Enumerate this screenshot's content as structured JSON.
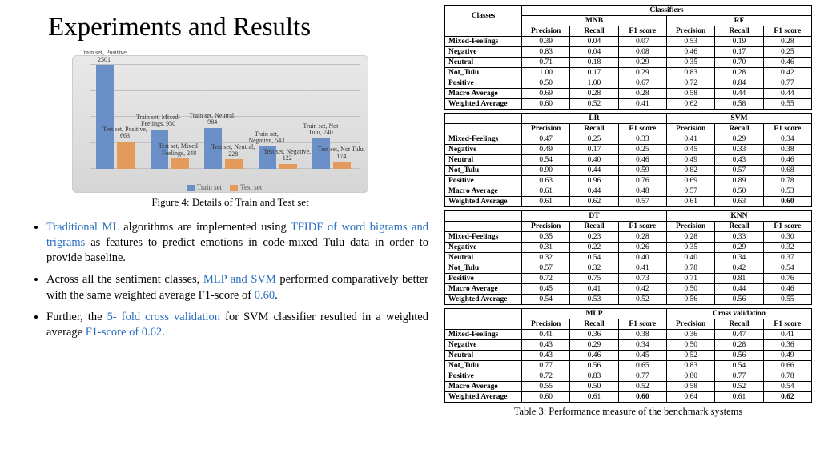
{
  "title": "Experiments and Results",
  "chart": {
    "type": "bar",
    "categories": [
      "Positive",
      "Mixed-Feelings",
      "Neutral",
      "Negative",
      "Not Tulu"
    ],
    "series": [
      {
        "name": "Train set",
        "color": "#6b8fc7",
        "values": [
          2501,
          950,
          984,
          543,
          740
        ]
      },
      {
        "name": "Test set",
        "color": "#e39a5b",
        "values": [
          663,
          248,
          228,
          122,
          174
        ]
      }
    ],
    "ymax": 2501,
    "grid_color": "#c0c0c0",
    "bg_gradient": [
      "#e9e9e9",
      "#d6d6d6"
    ],
    "bar_labels": [
      "Train set, Positive, 2501",
      "Test set, Positive, 663",
      "Train set, Mixed-Feelings, 950",
      "Test set, Mixed-Feelings, 248",
      "Train set, Neutral, 984",
      "Test set, Neutral, 228",
      "Train set, Negative, 543",
      "Test set, Negative, 122",
      "Train set, Not Tulu, 740",
      "Test set, Not Tulu, 174"
    ]
  },
  "figure_caption": "Figure 4: Details of Train and Test set",
  "bullets": [
    {
      "parts": [
        {
          "t": "Traditional ML",
          "hl": true
        },
        {
          "t": " algorithms  are implemented using "
        },
        {
          "t": "TFIDF of word bigrams and trigrams",
          "hl": true
        },
        {
          "t": " as features to predict emotions in code-mixed Tulu data in order to provide baseline."
        }
      ]
    },
    {
      "parts": [
        {
          "t": "Across all the sentiment classes, "
        },
        {
          "t": "MLP and SVM",
          "hl": true
        },
        {
          "t": " performed comparatively better with the same weighted average F1-score of "
        },
        {
          "t": "0.60",
          "hl": true
        },
        {
          "t": "."
        }
      ]
    },
    {
      "parts": [
        {
          "t": "Further, the "
        },
        {
          "t": "5- fold cross validation",
          "hl": true
        },
        {
          "t": " for SVM classifier resulted in a weighted average "
        },
        {
          "t": "F1-score of 0.62",
          "hl": true
        },
        {
          "t": "."
        }
      ]
    }
  ],
  "tables": {
    "header_row0_col0": "Classes",
    "header_row0_col1": "Classifiers",
    "metrics": [
      "Precision",
      "Recall",
      "F1 score"
    ],
    "class_labels": [
      "Mixed-Feelings",
      "Negative",
      "Neutral",
      "Not_Tulu",
      "Positive",
      "Macro Average",
      "Weighted Average"
    ],
    "blocks": [
      {
        "left": {
          "name": "MNB",
          "rows": [
            [
              0.39,
              0.04,
              0.07
            ],
            [
              0.83,
              0.04,
              0.08
            ],
            [
              0.71,
              0.18,
              0.29
            ],
            [
              1.0,
              0.17,
              0.29
            ],
            [
              0.5,
              1.0,
              0.67
            ],
            [
              0.69,
              0.28,
              0.28
            ],
            [
              0.6,
              0.52,
              0.41
            ]
          ]
        },
        "right": {
          "name": "RF",
          "rows": [
            [
              0.53,
              0.19,
              0.28
            ],
            [
              0.46,
              0.17,
              0.25
            ],
            [
              0.35,
              0.7,
              0.46
            ],
            [
              0.83,
              0.28,
              0.42
            ],
            [
              0.72,
              0.84,
              0.77
            ],
            [
              0.58,
              0.44,
              0.44
            ],
            [
              0.62,
              0.58,
              0.55
            ]
          ]
        },
        "show_super_header": true
      },
      {
        "left": {
          "name": "LR",
          "rows": [
            [
              0.47,
              0.25,
              0.33
            ],
            [
              0.49,
              0.17,
              0.25
            ],
            [
              0.54,
              0.4,
              0.46
            ],
            [
              0.9,
              0.44,
              0.59
            ],
            [
              0.63,
              0.96,
              0.76
            ],
            [
              0.61,
              0.44,
              0.48
            ],
            [
              0.61,
              0.62,
              0.57
            ]
          ]
        },
        "right": {
          "name": "SVM",
          "rows": [
            [
              0.41,
              0.29,
              0.34
            ],
            [
              0.45,
              0.33,
              0.38
            ],
            [
              0.49,
              0.43,
              0.46
            ],
            [
              0.82,
              0.57,
              0.68
            ],
            [
              0.69,
              0.89,
              0.78
            ],
            [
              0.57,
              0.5,
              0.53
            ],
            [
              0.61,
              0.63,
              "0.60"
            ]
          ],
          "bold_last": true
        }
      },
      {
        "left": {
          "name": "DT",
          "rows": [
            [
              0.35,
              0.23,
              0.28
            ],
            [
              0.31,
              0.22,
              0.26
            ],
            [
              0.32,
              0.54,
              0.4
            ],
            [
              0.57,
              0.32,
              0.41
            ],
            [
              0.72,
              0.75,
              0.73
            ],
            [
              0.45,
              0.41,
              0.42
            ],
            [
              0.54,
              0.53,
              0.52
            ]
          ]
        },
        "right": {
          "name": "KNN",
          "rows": [
            [
              0.28,
              0.33,
              0.3
            ],
            [
              0.35,
              0.29,
              0.32
            ],
            [
              0.4,
              0.34,
              0.37
            ],
            [
              0.78,
              0.42,
              0.54
            ],
            [
              0.71,
              0.81,
              0.76
            ],
            [
              0.5,
              0.44,
              0.46
            ],
            [
              0.56,
              0.56,
              0.55
            ]
          ]
        }
      },
      {
        "left": {
          "name": "MLP",
          "rows": [
            [
              0.41,
              0.36,
              0.38
            ],
            [
              0.43,
              0.29,
              0.34
            ],
            [
              0.43,
              0.46,
              0.45
            ],
            [
              0.77,
              0.56,
              0.65
            ],
            [
              0.72,
              0.83,
              0.77
            ],
            [
              0.55,
              0.5,
              0.52
            ],
            [
              0.6,
              0.61,
              "0.60"
            ]
          ],
          "bold_last": true
        },
        "right": {
          "name": "Cross validation",
          "rows": [
            [
              0.36,
              0.47,
              0.41
            ],
            [
              0.5,
              0.28,
              0.36
            ],
            [
              0.52,
              0.56,
              0.49
            ],
            [
              0.83,
              0.54,
              0.66
            ],
            [
              0.8,
              0.77,
              0.78
            ],
            [
              0.58,
              0.52,
              0.54
            ],
            [
              0.64,
              0.61,
              "0.62"
            ]
          ],
          "bold_last": true
        }
      }
    ]
  },
  "table_caption": "Table 3: Performance measure of the benchmark systems"
}
